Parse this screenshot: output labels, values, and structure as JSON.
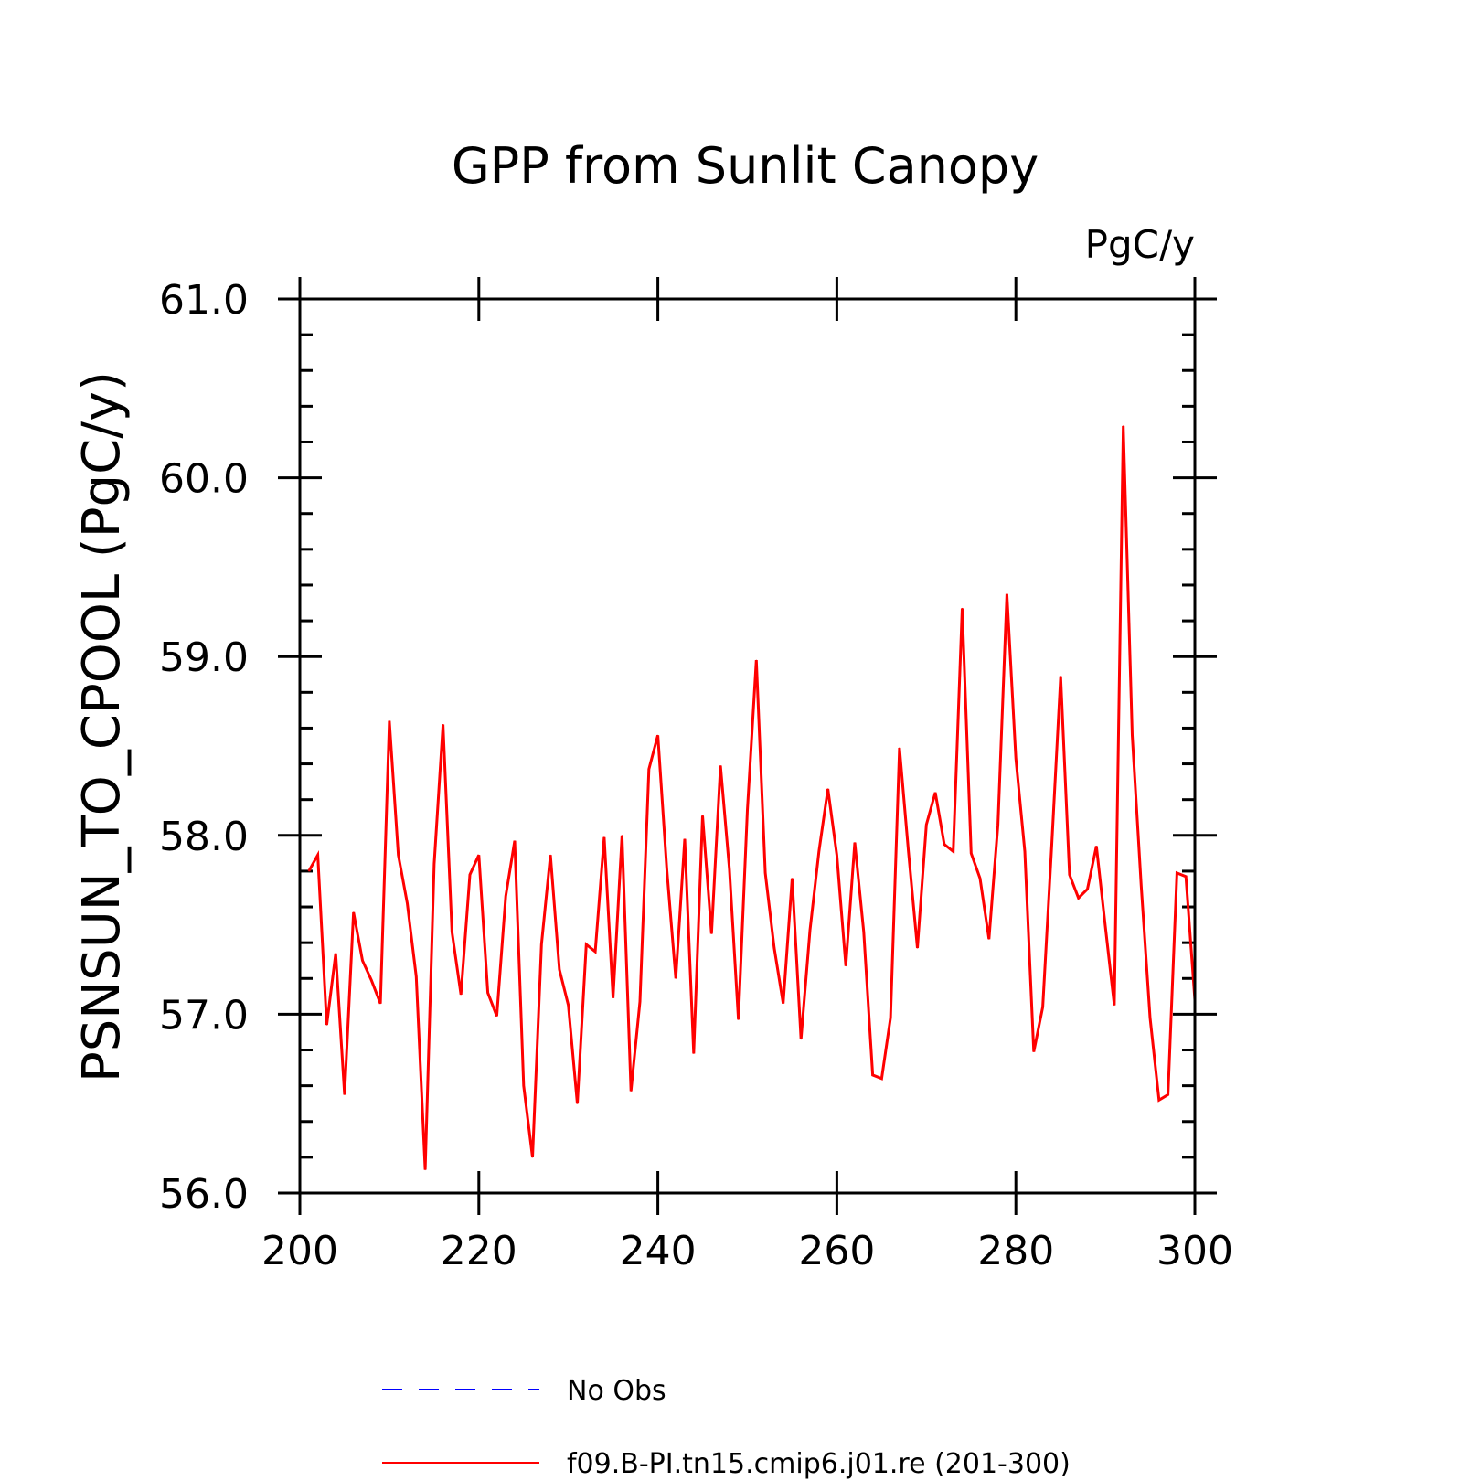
{
  "chart_data": {
    "type": "line",
    "title": "GPP from Sunlit Canopy",
    "units": "PgC/y",
    "ylabel": "PSNSUN_TO_CPOOL  (PgC/y)",
    "xlabel": "",
    "xlim": [
      200,
      300
    ],
    "ylim": [
      56.0,
      61.0
    ],
    "x_ticks": [
      "200",
      "220",
      "240",
      "260",
      "280",
      "300"
    ],
    "y_ticks": [
      "56.0",
      "57.0",
      "58.0",
      "59.0",
      "60.0",
      "61.0"
    ],
    "grid": false,
    "legend_position": "bottom",
    "legend": [
      {
        "label": "No Obs",
        "style": "dashed",
        "color": "#0000ff"
      },
      {
        "label": "f09.B-PI.tn15.cmip6.j01.re (201-300)",
        "style": "solid",
        "color": "#ff0000"
      }
    ],
    "series": [
      {
        "name": "f09.B-PI.tn15.cmip6.j01.re (201-300)",
        "color": "#ff0000",
        "x": [
          201,
          202,
          203,
          204,
          205,
          206,
          207,
          208,
          209,
          210,
          211,
          212,
          213,
          214,
          215,
          216,
          217,
          218,
          219,
          220,
          221,
          222,
          223,
          224,
          225,
          226,
          227,
          228,
          229,
          230,
          231,
          232,
          233,
          234,
          235,
          236,
          237,
          238,
          239,
          240,
          241,
          242,
          243,
          244,
          245,
          246,
          247,
          248,
          249,
          250,
          251,
          252,
          253,
          254,
          255,
          256,
          257,
          258,
          259,
          260,
          261,
          262,
          263,
          264,
          265,
          266,
          267,
          268,
          269,
          270,
          271,
          272,
          273,
          274,
          275,
          276,
          277,
          278,
          279,
          280,
          281,
          282,
          283,
          284,
          285,
          286,
          287,
          288,
          289,
          290,
          291,
          292,
          293,
          294,
          295,
          296,
          297,
          298,
          299,
          300
        ],
        "values": [
          57.8,
          57.89,
          56.94,
          57.34,
          56.55,
          57.57,
          57.3,
          57.19,
          57.06,
          58.64,
          57.89,
          57.62,
          57.21,
          56.13,
          57.84,
          58.62,
          57.46,
          57.11,
          57.78,
          57.89,
          57.12,
          56.99,
          57.66,
          57.97,
          56.6,
          56.2,
          57.39,
          57.89,
          57.25,
          57.05,
          56.5,
          57.39,
          57.35,
          57.99,
          57.09,
          58.0,
          56.57,
          57.07,
          58.37,
          58.56,
          57.81,
          57.2,
          57.98,
          56.78,
          58.11,
          57.45,
          58.39,
          57.81,
          56.97,
          58.14,
          58.98,
          57.79,
          57.37,
          57.06,
          57.76,
          56.86,
          57.47,
          57.91,
          58.26,
          57.89,
          57.27,
          57.96,
          57.46,
          56.66,
          56.64,
          56.98,
          58.49,
          57.91,
          57.37,
          58.06,
          58.24,
          57.95,
          57.91,
          59.27,
          57.9,
          57.76,
          57.42,
          58.06,
          59.35,
          58.43,
          57.91,
          56.79,
          57.04,
          57.94,
          58.89,
          57.78,
          57.65,
          57.7,
          57.94,
          57.49,
          57.05,
          60.29,
          58.56,
          57.72,
          56.98,
          56.52,
          56.55,
          57.79,
          57.77,
          57.08
        ]
      }
    ]
  }
}
